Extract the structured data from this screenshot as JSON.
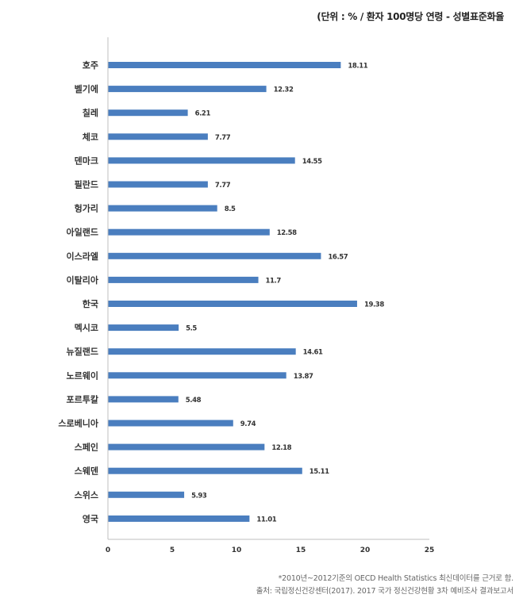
{
  "header": {
    "unit_note": "(단위 : % / 환자 100명당 연령 - 성별표준화율"
  },
  "chart_data": {
    "type": "bar",
    "orientation": "horizontal",
    "categories": [
      "호주",
      "벨기에",
      "칠레",
      "체코",
      "덴마크",
      "필란드",
      "헝가리",
      "아일랜드",
      "이스라엘",
      "이탈리아",
      "한국",
      "멕시코",
      "뉴질랜드",
      "노르웨이",
      "포르투칼",
      "스로베니아",
      "스페인",
      "스웨덴",
      "스위스",
      "영국"
    ],
    "values": [
      18.11,
      12.32,
      6.21,
      7.77,
      14.55,
      7.77,
      8.5,
      12.58,
      16.57,
      11.7,
      19.38,
      5.5,
      14.61,
      13.87,
      5.48,
      9.74,
      12.18,
      15.11,
      5.93,
      11.01
    ],
    "value_labels": [
      "18.11",
      "12.32",
      "6.21",
      "7.77",
      "14.55",
      "7.77",
      "8.5",
      "12.58",
      "16.57",
      "11.7",
      "19.38",
      "5.5",
      "14.61",
      "13.87",
      "5.48",
      "9.74",
      "12.18",
      "15.11",
      "5.93",
      "11.01"
    ],
    "x_ticks": [
      0,
      5,
      10,
      15,
      20,
      25
    ],
    "x_tick_labels": [
      "0",
      "5",
      "10",
      "15",
      "20",
      "25"
    ],
    "xlim": [
      0,
      25
    ],
    "bar_color": "#4a7ebf",
    "grid": false,
    "legend": "none"
  },
  "footer": {
    "note": "*2010년~2012기준의 OECD Health Statistics 최신데이터를 근거로 함.",
    "source": "출처: 국립정신건강센터(2017). 2017 국가 정신건강현황 3차 예비조사 결과보고서"
  }
}
